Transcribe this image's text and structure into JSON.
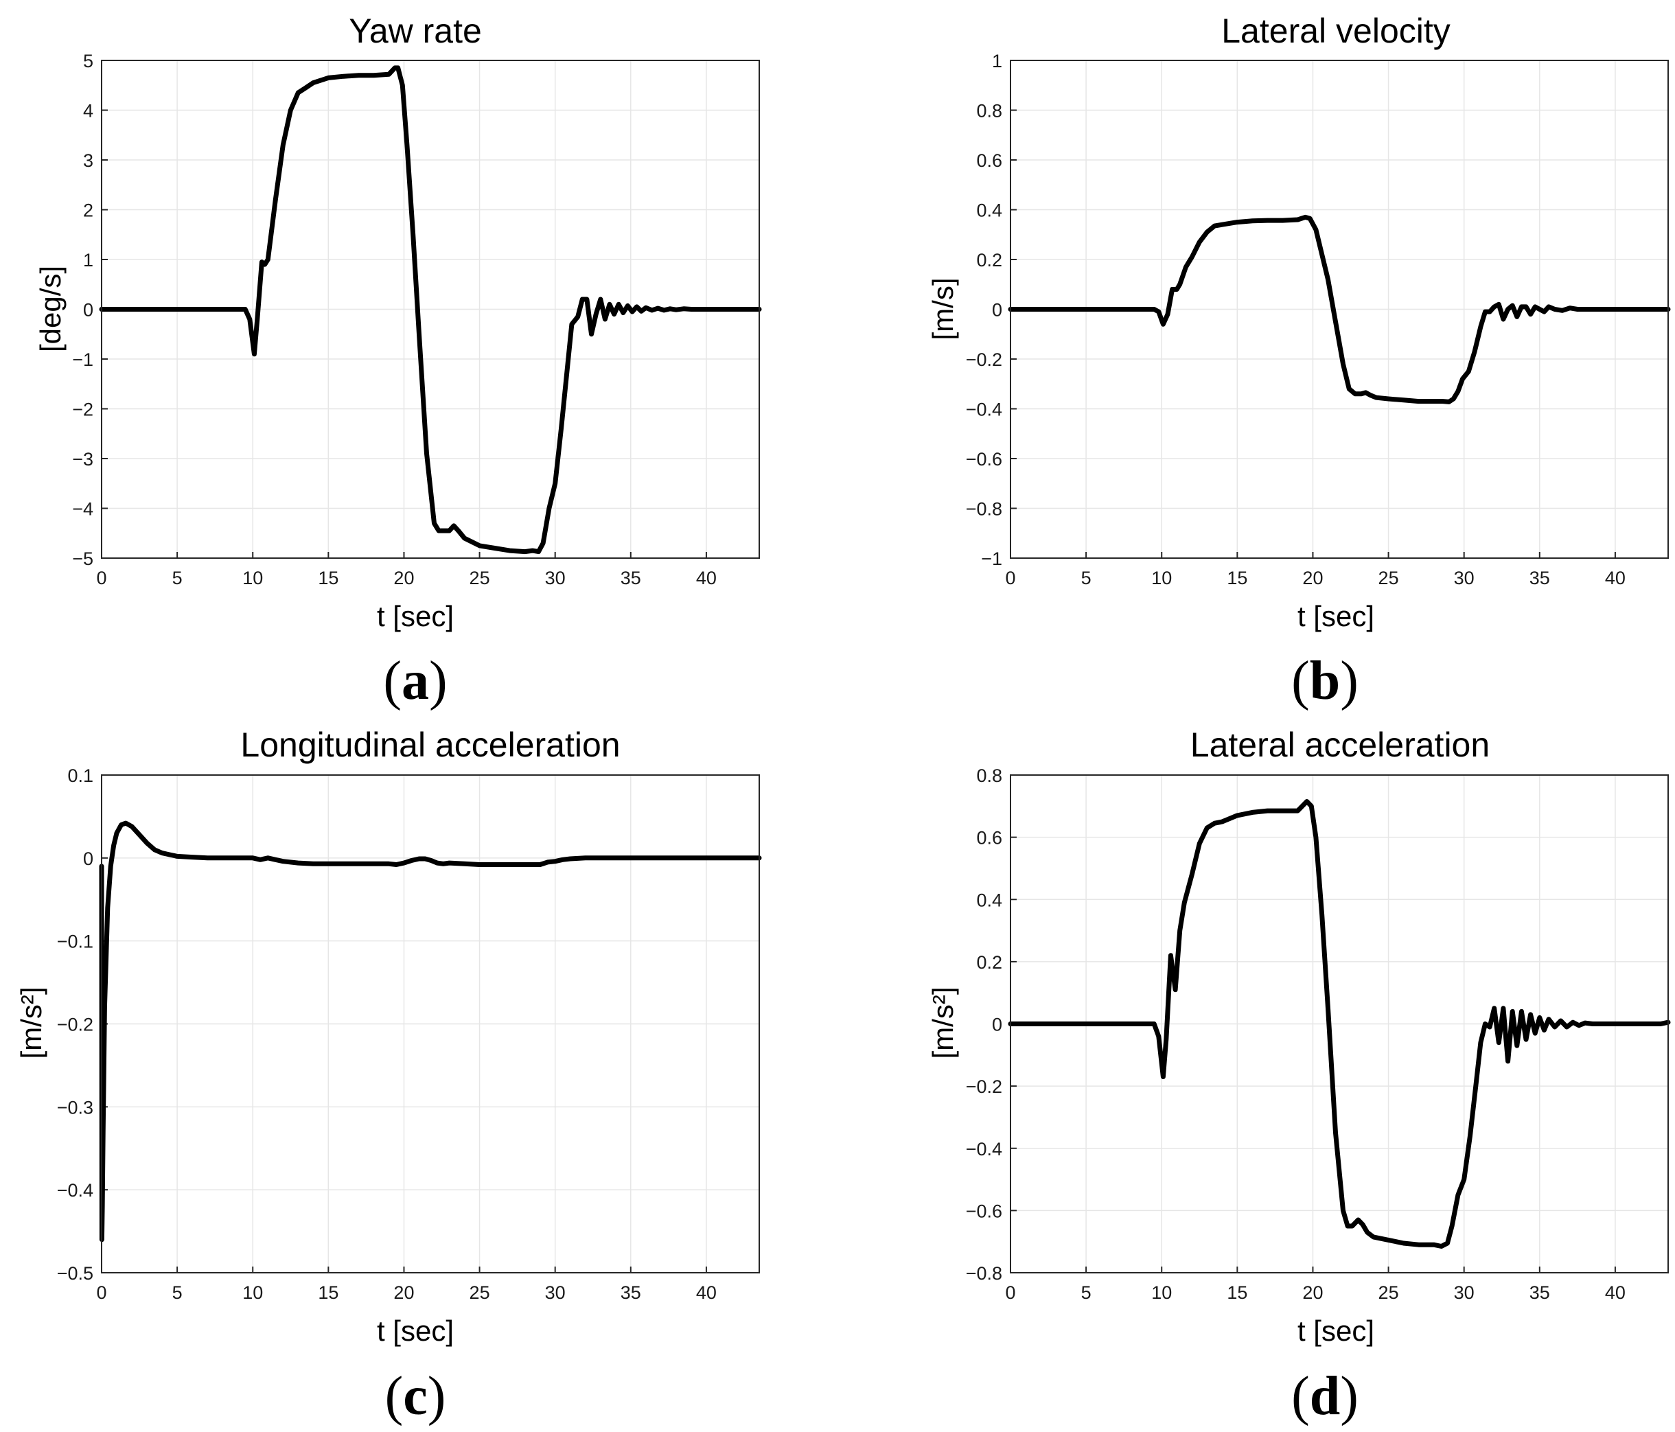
{
  "chart_data": [
    {
      "type": "line",
      "panel": "(a)",
      "title": "Yaw rate",
      "xlabel": "t [sec]",
      "ylabel": "[deg/s]",
      "xlim": [
        0,
        43.5
      ],
      "ylim": [
        -5,
        5
      ],
      "xticks": [
        0,
        5,
        10,
        15,
        20,
        25,
        30,
        35,
        40
      ],
      "yticks": [
        5,
        4,
        3,
        2,
        1,
        0,
        -1,
        -2,
        -3,
        -4,
        -5
      ],
      "ytick_labels": [
        "5",
        "4",
        "3",
        "2",
        "1",
        "0",
        "−1",
        "−2",
        "−3",
        "−4",
        "−5"
      ],
      "grid": true,
      "series": [
        {
          "color": "#000000",
          "x": [
            0,
            9.5,
            9.8,
            10.1,
            10.3,
            10.6,
            10.8,
            11.0,
            11.5,
            12.0,
            12.5,
            13.0,
            13.5,
            14.0,
            15.0,
            16.0,
            17.0,
            18.0,
            19.0,
            19.4,
            19.6,
            19.9,
            20.2,
            20.6,
            21.0,
            21.5,
            22.0,
            22.3,
            22.6,
            23.0,
            23.3,
            23.6,
            24.0,
            25.0,
            26.0,
            27.0,
            28.0,
            28.5,
            28.9,
            29.2,
            29.6,
            30.0,
            30.4,
            30.8,
            31.1,
            31.5,
            31.8,
            32.1,
            32.4,
            32.7,
            33.0,
            33.3,
            33.6,
            33.9,
            34.2,
            34.5,
            34.8,
            35.1,
            35.4,
            35.7,
            36.0,
            36.4,
            36.8,
            37.2,
            37.6,
            38.0,
            38.5,
            39.0,
            40.0,
            41.0,
            42.0,
            43.5
          ],
          "y": [
            0,
            0,
            -0.2,
            -0.9,
            -0.2,
            0.95,
            0.9,
            1.0,
            2.2,
            3.3,
            4.0,
            4.35,
            4.45,
            4.55,
            4.65,
            4.68,
            4.7,
            4.7,
            4.72,
            4.85,
            4.85,
            4.5,
            3.3,
            1.5,
            -0.5,
            -2.9,
            -4.3,
            -4.45,
            -4.45,
            -4.45,
            -4.35,
            -4.45,
            -4.6,
            -4.75,
            -4.8,
            -4.85,
            -4.87,
            -4.85,
            -4.87,
            -4.7,
            -4.0,
            -3.5,
            -2.4,
            -1.2,
            -0.3,
            -0.15,
            0.2,
            0.2,
            -0.5,
            -0.1,
            0.2,
            -0.2,
            0.1,
            -0.1,
            0.1,
            -0.07,
            0.07,
            -0.05,
            0.05,
            -0.04,
            0.03,
            -0.02,
            0.02,
            -0.02,
            0.01,
            -0.01,
            0.01,
            0,
            0,
            0,
            0,
            0
          ]
        }
      ]
    },
    {
      "type": "line",
      "panel": "(b)",
      "title": "Lateral velocity",
      "xlabel": "t [sec]",
      "ylabel": "[m/s]",
      "xlim": [
        0,
        43.5
      ],
      "ylim": [
        -1,
        1
      ],
      "xticks": [
        0,
        5,
        10,
        15,
        20,
        25,
        30,
        35,
        40
      ],
      "yticks": [
        1,
        0.8,
        0.6,
        0.4,
        0.2,
        0,
        -0.2,
        -0.4,
        -0.6,
        -0.8,
        -1
      ],
      "ytick_labels": [
        "1",
        "0.8",
        "0.6",
        "0.4",
        "0.2",
        "0",
        "−0.2",
        "−0.4",
        "−0.6",
        "−0.8",
        "−1"
      ],
      "grid": true,
      "series": [
        {
          "color": "#000000",
          "x": [
            0,
            9.5,
            9.8,
            10.1,
            10.4,
            10.7,
            11.0,
            11.2,
            11.6,
            12.0,
            12.5,
            13.0,
            13.5,
            14.0,
            15.0,
            16.0,
            17.0,
            18.0,
            19.0,
            19.5,
            19.8,
            20.2,
            20.6,
            21.0,
            21.5,
            22.0,
            22.4,
            22.8,
            23.2,
            23.5,
            23.8,
            24.2,
            25.0,
            26.0,
            27.0,
            28.0,
            28.6,
            29.0,
            29.3,
            29.6,
            29.9,
            30.3,
            30.7,
            31.1,
            31.4,
            31.7,
            32.0,
            32.3,
            32.6,
            32.9,
            33.2,
            33.5,
            33.8,
            34.1,
            34.4,
            34.7,
            35.0,
            35.3,
            35.6,
            36.0,
            36.5,
            37.0,
            37.5,
            38.0,
            39.0,
            40.0,
            41.0,
            42.0,
            43.5
          ],
          "y": [
            0,
            0,
            -0.01,
            -0.06,
            -0.02,
            0.08,
            0.08,
            0.1,
            0.17,
            0.21,
            0.27,
            0.31,
            0.335,
            0.34,
            0.35,
            0.355,
            0.357,
            0.357,
            0.36,
            0.37,
            0.365,
            0.32,
            0.22,
            0.12,
            -0.05,
            -0.22,
            -0.32,
            -0.34,
            -0.34,
            -0.335,
            -0.345,
            -0.355,
            -0.36,
            -0.365,
            -0.37,
            -0.37,
            -0.37,
            -0.372,
            -0.36,
            -0.33,
            -0.28,
            -0.25,
            -0.17,
            -0.07,
            -0.01,
            -0.01,
            0.01,
            0.02,
            -0.04,
            0.0,
            0.015,
            -0.03,
            0.01,
            0.01,
            -0.02,
            0.01,
            0.0,
            -0.01,
            0.01,
            0.0,
            -0.005,
            0.005,
            0,
            0,
            0,
            0,
            0,
            0,
            0
          ]
        }
      ]
    },
    {
      "type": "line",
      "panel": "(c)",
      "title": "Longitudinal acceleration",
      "xlabel": "t [sec]",
      "ylabel": "[m/s²]",
      "xlim": [
        0,
        43.5
      ],
      "ylim": [
        -0.5,
        0.1
      ],
      "xticks": [
        0,
        5,
        10,
        15,
        20,
        25,
        30,
        35,
        40
      ],
      "yticks": [
        0.1,
        0,
        -0.1,
        -0.2,
        -0.3,
        -0.4,
        -0.5
      ],
      "ytick_labels": [
        "0.1",
        "0",
        "−0.1",
        "−0.2",
        "−0.3",
        "−0.4",
        "−0.5"
      ],
      "grid": true,
      "series": [
        {
          "color": "#000000",
          "x": [
            0,
            0.02,
            0.05,
            0.1,
            0.2,
            0.4,
            0.6,
            0.8,
            1.0,
            1.3,
            1.6,
            2.0,
            2.5,
            3.0,
            3.5,
            4.0,
            4.5,
            5.0,
            6.0,
            7.0,
            8.0,
            9.0,
            10.0,
            10.5,
            11.0,
            11.5,
            12.0,
            13.0,
            14.0,
            15.0,
            16.0,
            17.0,
            18.0,
            19.0,
            19.5,
            20.0,
            20.5,
            21.0,
            21.4,
            21.8,
            22.2,
            22.6,
            23.0,
            24.0,
            25.0,
            26.0,
            27.0,
            28.0,
            29.0,
            29.5,
            30.0,
            30.5,
            31.0,
            32.0,
            33.0,
            35.0,
            38.0,
            40.0,
            43.5
          ],
          "y": [
            -0.01,
            -0.46,
            -0.42,
            -0.33,
            -0.18,
            -0.06,
            -0.01,
            0.015,
            0.03,
            0.04,
            0.042,
            0.038,
            0.028,
            0.018,
            0.01,
            0.006,
            0.004,
            0.002,
            0.001,
            0.0,
            0.0,
            0.0,
            0.0,
            -0.002,
            0.0,
            -0.002,
            -0.004,
            -0.006,
            -0.007,
            -0.007,
            -0.007,
            -0.007,
            -0.007,
            -0.007,
            -0.008,
            -0.006,
            -0.003,
            -0.001,
            -0.001,
            -0.003,
            -0.006,
            -0.007,
            -0.006,
            -0.007,
            -0.008,
            -0.008,
            -0.008,
            -0.008,
            -0.008,
            -0.005,
            -0.004,
            -0.002,
            -0.001,
            0.0,
            0.0,
            0.0,
            0.0,
            0.0,
            0.0
          ]
        }
      ]
    },
    {
      "type": "line",
      "panel": "(d)",
      "title": "Lateral acceleration",
      "xlabel": "t [sec]",
      "ylabel": "[m/s²]",
      "xlim": [
        0,
        43.5
      ],
      "ylim": [
        -0.8,
        0.8
      ],
      "xticks": [
        0,
        5,
        10,
        15,
        20,
        25,
        30,
        35,
        40
      ],
      "yticks": [
        0.8,
        0.6,
        0.4,
        0.2,
        0,
        -0.2,
        -0.4,
        -0.6,
        -0.8
      ],
      "ytick_labels": [
        "0.8",
        "0.6",
        "0.4",
        "0.2",
        "0",
        "−0.2",
        "−0.4",
        "−0.6",
        "−0.8"
      ],
      "grid": true,
      "series": [
        {
          "color": "#000000",
          "x": [
            0,
            9.5,
            9.8,
            10.1,
            10.3,
            10.6,
            10.9,
            11.2,
            11.5,
            12.0,
            12.5,
            13.0,
            13.5,
            14.0,
            15.0,
            16.0,
            17.0,
            18.0,
            19.0,
            19.3,
            19.6,
            19.9,
            20.2,
            20.6,
            21.0,
            21.5,
            22.0,
            22.3,
            22.6,
            23.0,
            23.3,
            23.6,
            24.0,
            25.0,
            26.0,
            27.0,
            28.0,
            28.5,
            28.9,
            29.2,
            29.6,
            30.0,
            30.4,
            30.8,
            31.1,
            31.4,
            31.7,
            32.0,
            32.3,
            32.6,
            32.9,
            33.2,
            33.5,
            33.8,
            34.1,
            34.4,
            34.7,
            35.0,
            35.3,
            35.6,
            36.0,
            36.4,
            36.8,
            37.2,
            37.6,
            38.0,
            38.5,
            39.0,
            40.0,
            41.0,
            42.0,
            43.0,
            43.5
          ],
          "y": [
            0,
            0,
            -0.04,
            -0.17,
            -0.05,
            0.22,
            0.11,
            0.3,
            0.39,
            0.48,
            0.58,
            0.63,
            0.645,
            0.65,
            0.67,
            0.68,
            0.685,
            0.685,
            0.685,
            0.7,
            0.715,
            0.7,
            0.6,
            0.35,
            0.05,
            -0.35,
            -0.6,
            -0.65,
            -0.65,
            -0.63,
            -0.645,
            -0.67,
            -0.685,
            -0.695,
            -0.705,
            -0.71,
            -0.71,
            -0.715,
            -0.705,
            -0.65,
            -0.55,
            -0.5,
            -0.36,
            -0.19,
            -0.06,
            0.0,
            -0.01,
            0.05,
            -0.06,
            0.05,
            -0.12,
            0.04,
            -0.07,
            0.04,
            -0.05,
            0.03,
            -0.03,
            0.02,
            -0.02,
            0.015,
            -0.01,
            0.01,
            -0.01,
            0.005,
            -0.005,
            0.003,
            0,
            0,
            0,
            0,
            0,
            0,
            0.005
          ]
        }
      ]
    }
  ],
  "panel_labels": [
    {
      "open": "(",
      "letter": "a",
      "close": ")"
    },
    {
      "open": "(",
      "letter": "b",
      "close": ")"
    },
    {
      "open": "(",
      "letter": "c",
      "close": ")"
    },
    {
      "open": "(",
      "letter": "d",
      "close": ")"
    }
  ]
}
